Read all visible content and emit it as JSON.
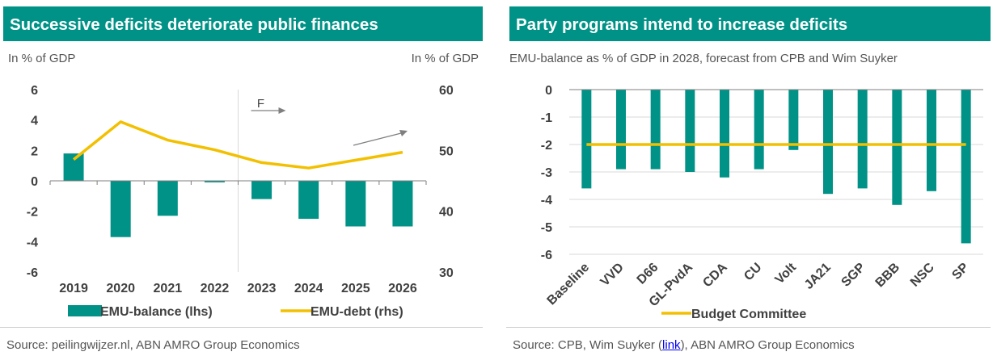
{
  "left": {
    "title": "Successive deficits deteriorate public finances",
    "unit_left": "In % of GDP",
    "unit_right": "In % of GDP",
    "source": "Source: peilingwijzer.nl, ABN AMRO Group Economics"
  },
  "right": {
    "title": "Party programs intend to increase deficits",
    "subtitle": "EMU-balance as % of GDP in 2028, forecast from CPB and Wim Suyker",
    "source_prefix": "Source: CPB, Wim Suyker (",
    "source_link": "link",
    "source_suffix": "), ABN AMRO Group Economics"
  },
  "chart_data": [
    {
      "type": "bar",
      "categories": [
        "2019",
        "2020",
        "2021",
        "2022",
        "2023",
        "2024",
        "2025",
        "2026"
      ],
      "series": [
        {
          "name": "EMU-balance (lhs)",
          "type": "bar",
          "axis": "left",
          "color": "#009286",
          "values": [
            1.8,
            -3.7,
            -2.3,
            -0.1,
            -1.2,
            -2.5,
            -3.0,
            -3.0
          ]
        },
        {
          "name": "EMU-debt (rhs)",
          "type": "line",
          "axis": "right",
          "color": "#f2c000",
          "values": [
            48.5,
            54.7,
            51.7,
            50.1,
            48.0,
            47.1,
            48.4,
            49.7
          ]
        }
      ],
      "y_left": {
        "range": [
          -6,
          6
        ],
        "ticks": [
          "6",
          "4",
          "2",
          "0",
          "-2",
          "-4",
          "-6"
        ]
      },
      "y_right": {
        "range": [
          30,
          60
        ],
        "ticks": [
          "60",
          "50",
          "40",
          "30"
        ]
      },
      "forecast_label": "F",
      "forecast_start": "2023",
      "legend_position": "bottom",
      "grid": false
    },
    {
      "type": "bar",
      "categories": [
        "Baseline",
        "VVD",
        "D66",
        "GL-PvdA",
        "CDA",
        "CU",
        "Volt",
        "JA21",
        "SGP",
        "BBB",
        "NSC",
        "SP"
      ],
      "series": [
        {
          "name": "",
          "type": "bar",
          "color": "#009286",
          "values": [
            -3.6,
            -2.9,
            -2.9,
            -3.0,
            -3.2,
            -2.9,
            -2.2,
            -3.8,
            -3.6,
            -4.2,
            -3.7,
            -5.6
          ]
        },
        {
          "name": "Budget Committee",
          "type": "line",
          "color": "#f2c000",
          "values": [
            -2,
            -2,
            -2,
            -2,
            -2,
            -2,
            -2,
            -2,
            -2,
            -2,
            -2,
            -2
          ]
        }
      ],
      "y": {
        "range": [
          -6,
          0
        ],
        "ticks": [
          "0",
          "-1",
          "-2",
          "-3",
          "-4",
          "-5",
          "-6"
        ]
      },
      "legend_position": "bottom",
      "grid": true
    }
  ]
}
